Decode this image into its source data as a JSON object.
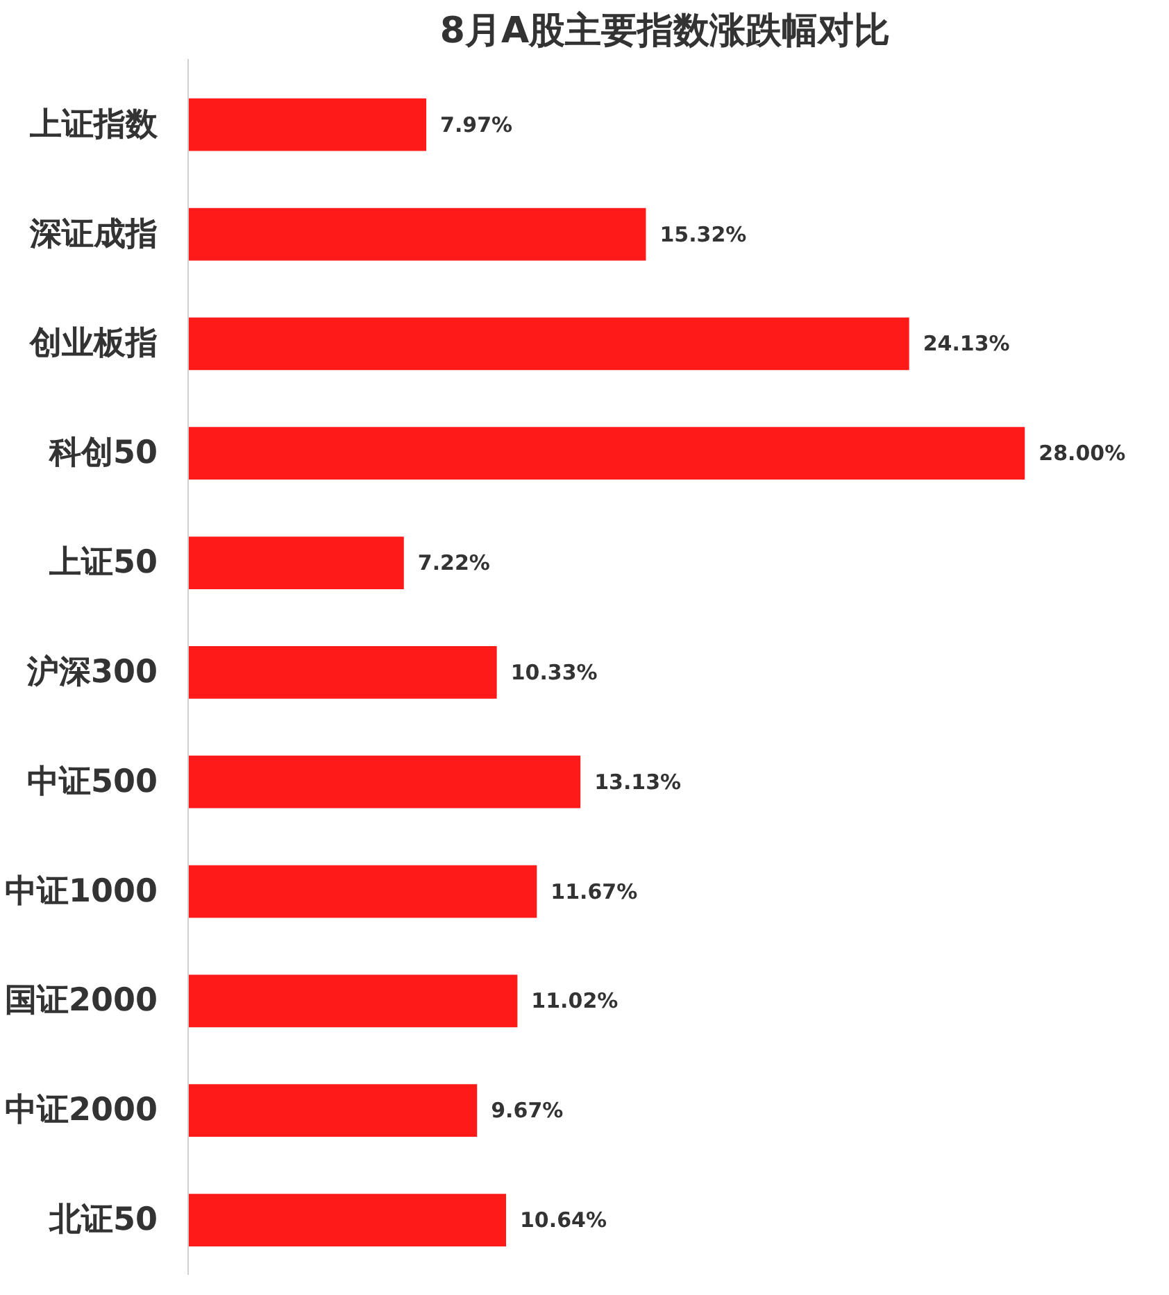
{
  "chart_data": {
    "type": "bar",
    "orientation": "horizontal",
    "title": "8月A股主要指数涨跌幅对比",
    "categories": [
      "上证指数",
      "深证成指",
      "创业板指",
      "科创50",
      "上证50",
      "沪深300",
      "中证500",
      "中证1000",
      "国证2000",
      "中证2000",
      "北证50"
    ],
    "values": [
      7.97,
      15.32,
      24.13,
      28.0,
      7.22,
      10.33,
      13.13,
      11.67,
      11.02,
      9.67,
      10.64
    ],
    "value_labels": [
      "7.97%",
      "15.32%",
      "24.13%",
      "28.00%",
      "7.22%",
      "10.33%",
      "13.13%",
      "11.67%",
      "11.02%",
      "9.67%",
      "10.64%"
    ],
    "color": "#ff1a1a",
    "grid": false
  }
}
